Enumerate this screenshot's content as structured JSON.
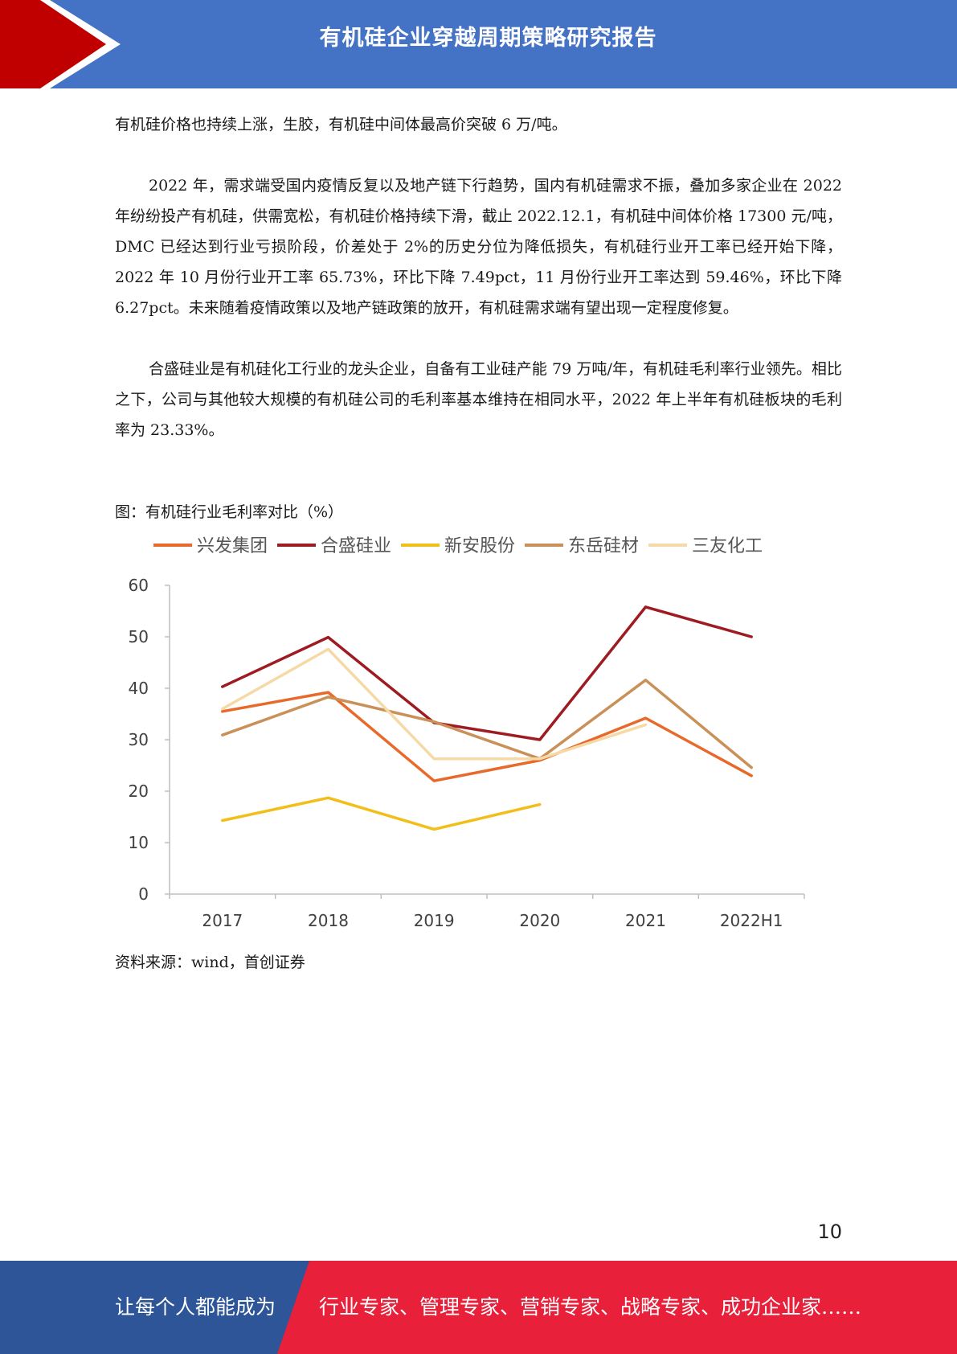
{
  "header": {
    "title": "有机硅企业穿越周期策略研究报告",
    "colors": {
      "bar": "#4472c4",
      "arrow": "#c00000"
    }
  },
  "paragraphs": [
    "有机硅价格也持续上涨，生胶，有机硅中间体最高价突破 6 万/吨。",
    "2022 年，需求端受国内疫情反复以及地产链下行趋势，国内有机硅需求不振，叠加多家企业在 2022 年纷纷投产有机硅，供需宽松，有机硅价格持续下滑，截止 2022.12.1，有机硅中间体价格 17300 元/吨，DMC 已经达到行业亏损阶段，价差处于 2%的历史分位为降低损失，有机硅行业开工率已经开始下降，2022 年 10 月份行业开工率 65.73%，环比下降 7.49pct，11 月份行业开工率达到 59.46%，环比下降 6.27pct。未来随着疫情政策以及地产链政策的放开，有机硅需求端有望出现一定程度修复。",
    "合盛硅业是有机硅化工行业的龙头企业，自备有工业硅产能 79 万吨/年，有机硅毛利率行业领先。相比之下，公司与其他较大规模的有机硅公司的毛利率基本维持在相同水平，2022 年上半年有机硅板块的毛利率为 23.33%。"
  ],
  "figure": {
    "caption": "图：有机硅行业毛利率对比（%）",
    "source": "资料来源：wind，首创证券"
  },
  "chart_data": {
    "type": "line",
    "title": "",
    "xlabel": "",
    "ylabel": "",
    "categories": [
      "2017",
      "2018",
      "2019",
      "2020",
      "2021",
      "2022H1"
    ],
    "ylim": [
      0,
      60
    ],
    "yticks": [
      0,
      10,
      20,
      30,
      40,
      50,
      60
    ],
    "grid": false,
    "legend_position": "top",
    "series": [
      {
        "name": "兴发集团",
        "color": "#e8692a",
        "values": [
          35.5,
          39.2,
          22.0,
          26.0,
          34.2,
          23.0
        ]
      },
      {
        "name": "合盛硅业",
        "color": "#9e1b22",
        "values": [
          40.3,
          49.9,
          33.3,
          30.0,
          55.8,
          50.0
        ]
      },
      {
        "name": "新安股份",
        "color": "#f2be1a",
        "values": [
          14.3,
          18.7,
          12.6,
          17.4,
          null,
          null
        ]
      },
      {
        "name": "东岳硅材",
        "color": "#c99058",
        "values": [
          30.9,
          38.3,
          33.5,
          26.3,
          41.6,
          24.6
        ]
      },
      {
        "name": "三友化工",
        "color": "#f5d9a6",
        "values": [
          36.0,
          47.6,
          26.3,
          26.3,
          32.9,
          null
        ]
      }
    ]
  },
  "page_number": "10",
  "footer": {
    "left_text": "让每个人都能成为",
    "right_text": "行业专家、管理专家、营销专家、战略专家、成功企业家……",
    "colors": {
      "left": "#2e5597",
      "right": "#e8203a"
    }
  }
}
